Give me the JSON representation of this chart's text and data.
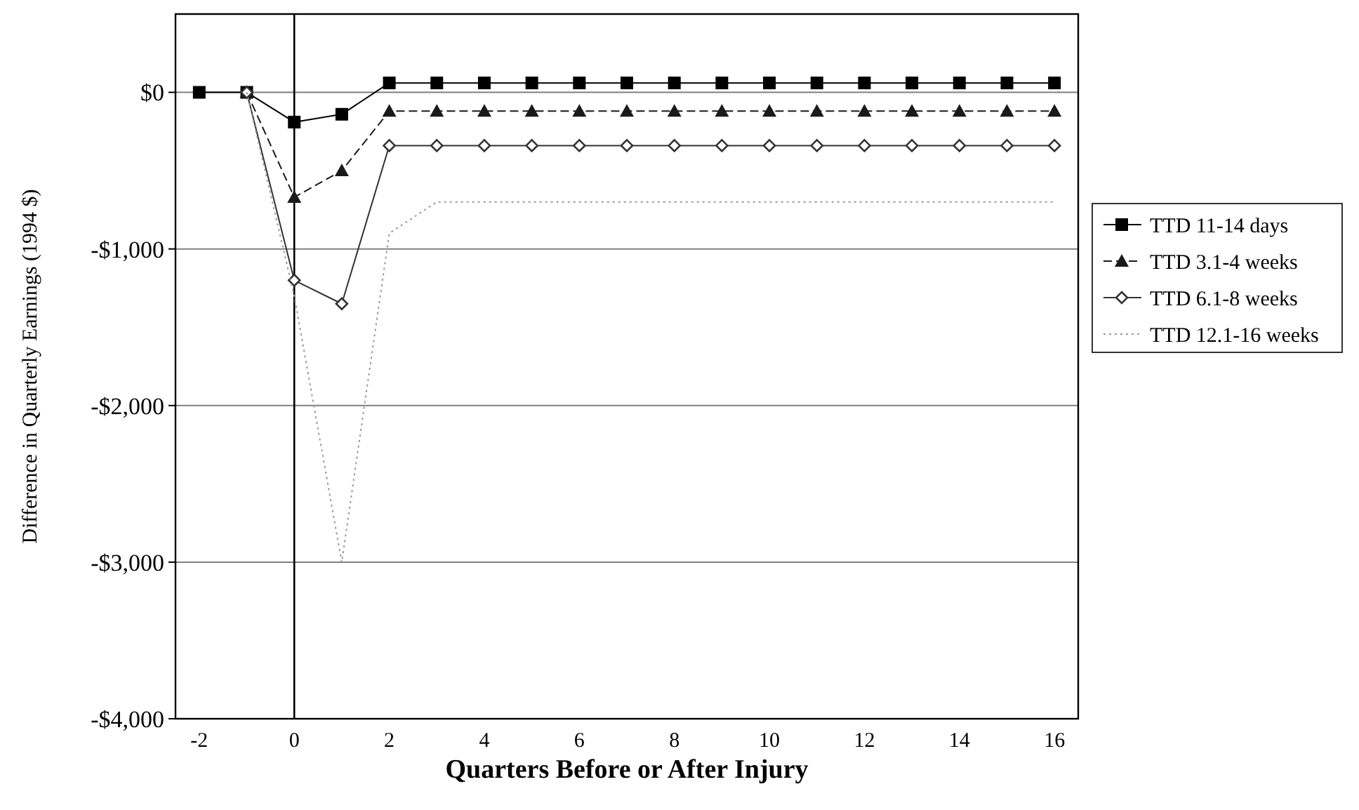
{
  "chart_data": {
    "type": "line",
    "xlabel": "Quarters Before or After Injury",
    "ylabel": "Difference in Quarterly Earnings (1994 $)",
    "x": [
      -2,
      -1,
      0,
      1,
      2,
      3,
      4,
      5,
      6,
      7,
      8,
      9,
      10,
      11,
      12,
      13,
      14,
      15,
      16
    ],
    "series": [
      {
        "name": "TTD 11-14 days",
        "color": "#000000",
        "marker": "square",
        "line_style": "solid",
        "values": [
          0,
          0,
          -190,
          -140,
          60,
          60,
          60,
          60,
          60,
          60,
          60,
          60,
          60,
          60,
          60,
          60,
          60,
          60,
          60
        ]
      },
      {
        "name": "TTD 3.1-4 weeks",
        "color": "#1a1a1a",
        "marker": "triangle",
        "line_style": "dashed",
        "values": [
          null,
          0,
          -670,
          -500,
          -120,
          -120,
          -120,
          -120,
          -120,
          -120,
          -120,
          -120,
          -120,
          -120,
          -120,
          -120,
          -120,
          -120,
          -120
        ]
      },
      {
        "name": "TTD 6.1-8 weeks",
        "color": "#333333",
        "marker": "diamond",
        "line_style": "solid",
        "values": [
          null,
          0,
          -1200,
          -1350,
          -340,
          -340,
          -340,
          -340,
          -340,
          -340,
          -340,
          -340,
          -340,
          -340,
          -340,
          -340,
          -340,
          -340,
          -340
        ]
      },
      {
        "name": "TTD 12.1-16 weeks",
        "color": "#999999",
        "marker": "none",
        "line_style": "dotted",
        "values": [
          null,
          0,
          -1300,
          -3000,
          -900,
          -700,
          -700,
          -700,
          -700,
          -700,
          -700,
          -700,
          -700,
          -700,
          -700,
          -700,
          -700,
          -700,
          -700
        ]
      }
    ],
    "xlim": [
      -2.5,
      16.5
    ],
    "xticks": [
      -2,
      0,
      2,
      4,
      6,
      8,
      10,
      12,
      14,
      16
    ],
    "ylim": [
      -4000,
      500
    ],
    "yticks": [
      {
        "value": 0,
        "label": "$0"
      },
      {
        "value": -1000,
        "label": "-$1,000"
      },
      {
        "value": -2000,
        "label": "-$2,000"
      },
      {
        "value": -3000,
        "label": "-$3,000"
      },
      {
        "value": -4000,
        "label": "-$4,000"
      }
    ],
    "ref_lines": [
      {
        "axis": "x",
        "value": 0,
        "label": null,
        "color": "#000000"
      }
    ],
    "grid": "y",
    "legend": "right"
  }
}
